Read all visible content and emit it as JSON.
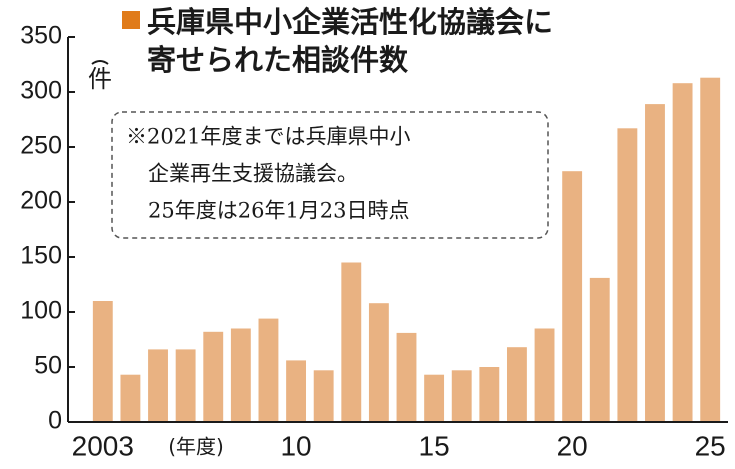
{
  "chart_data": {
    "type": "bar",
    "title": [
      "兵庫県中小企業活性化協議会に",
      "寄せられた相談件数"
    ],
    "y_label": "件",
    "x_label": "(年度)",
    "annotation": [
      "※2021年度までは兵庫県中小",
      "企業再生支援協議会。",
      "25年度は26年1月23日時点"
    ],
    "categories": [
      "2003",
      null,
      null,
      null,
      null,
      null,
      null,
      "10",
      null,
      null,
      null,
      null,
      "15",
      null,
      null,
      null,
      null,
      "20",
      null,
      null,
      null,
      null,
      "25"
    ],
    "values": [
      110,
      43,
      66,
      66,
      82,
      85,
      94,
      56,
      47,
      145,
      108,
      81,
      43,
      47,
      50,
      68,
      85,
      228,
      131,
      267,
      289,
      308,
      313
    ],
    "color": "#e9b282",
    "title_marker_color": "#e07b1a",
    "ylim": [
      0,
      350
    ],
    "yticks": [
      0,
      50,
      100,
      150,
      200,
      250,
      300,
      350
    ],
    "grid": false
  }
}
